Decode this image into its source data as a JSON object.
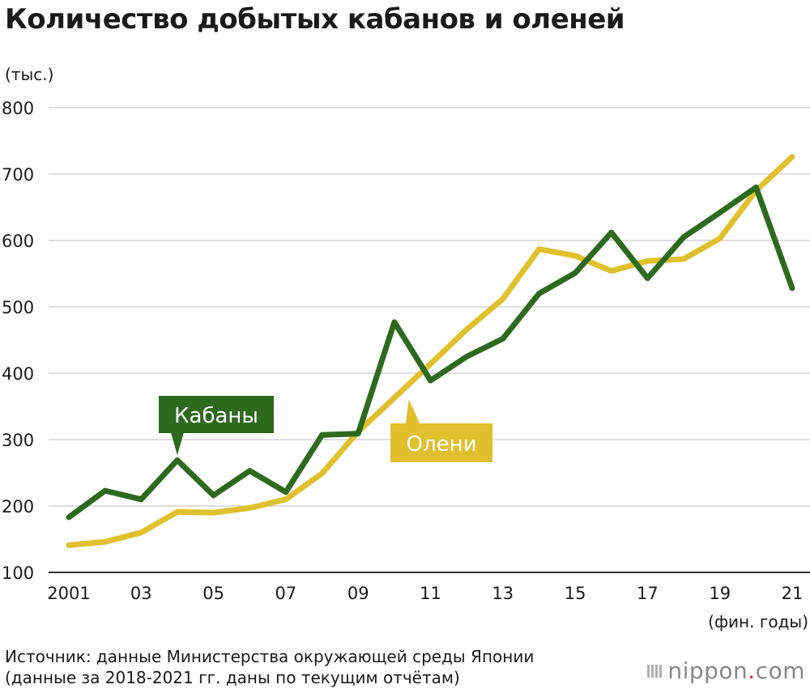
{
  "chart_data": {
    "type": "line",
    "title": "Количество добытых кабанов и оленей",
    "ylabel": "(тыс.)",
    "xlabel": "(фин. годы)",
    "ylim": [
      100,
      800
    ],
    "yticks": [
      100,
      200,
      300,
      400,
      500,
      600,
      700,
      800
    ],
    "x": [
      2001,
      2002,
      2003,
      2004,
      2005,
      2006,
      2007,
      2008,
      2009,
      2010,
      2011,
      2012,
      2013,
      2014,
      2015,
      2016,
      2017,
      2018,
      2019,
      2020,
      2021
    ],
    "xticks": [
      {
        "year": 2001,
        "label": "2001"
      },
      {
        "year": 2003,
        "label": "03"
      },
      {
        "year": 2005,
        "label": "05"
      },
      {
        "year": 2007,
        "label": "07"
      },
      {
        "year": 2009,
        "label": "09"
      },
      {
        "year": 2011,
        "label": "11"
      },
      {
        "year": 2013,
        "label": "13"
      },
      {
        "year": 2015,
        "label": "15"
      },
      {
        "year": 2017,
        "label": "17"
      },
      {
        "year": 2019,
        "label": "19"
      },
      {
        "year": 2021,
        "label": "21"
      }
    ],
    "series": [
      {
        "name": "Олени",
        "color": "#e0c02c",
        "values": [
          141,
          146,
          160,
          191,
          190,
          197,
          210,
          249,
          312,
          363,
          414,
          466,
          512,
          587,
          577,
          554,
          569,
          572,
          603,
          675,
          726
        ]
      },
      {
        "name": "Кабаны",
        "color": "#2e6a1e",
        "values": [
          183,
          223,
          210,
          269,
          216,
          253,
          221,
          307,
          309,
          477,
          389,
          425,
          452,
          520,
          551,
          612,
          543,
          605,
          642,
          680,
          528
        ]
      }
    ],
    "grid": true
  },
  "footer": {
    "source_line1": "Источник: данные Министерства окружающей среды Японии",
    "source_line2": "(данные за 2018-2021 гг. даны по текущим отчётам)",
    "brand_name": "nippon",
    "brand_dot": ".",
    "brand_tld": "com"
  }
}
